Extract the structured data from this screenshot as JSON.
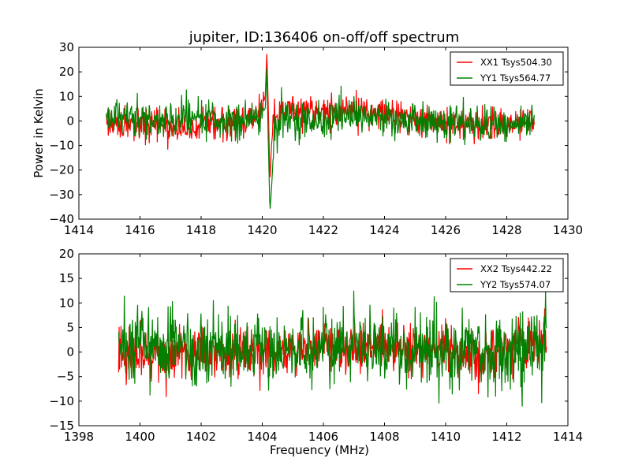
{
  "figure_title": "jupiter, ID:136406 on-off/off spectrum",
  "colors": {
    "xx": "#ff0000",
    "yy": "#008000"
  },
  "chart_data": [
    {
      "type": "line",
      "xlabel": "",
      "ylabel": "Power in Kelvin",
      "xlim": [
        1414,
        1430
      ],
      "ylim": [
        -40,
        30
      ],
      "xticks": [
        1414,
        1416,
        1418,
        1420,
        1422,
        1424,
        1426,
        1428,
        1430
      ],
      "yticks": [
        -40,
        -30,
        -20,
        -10,
        0,
        10,
        20,
        30
      ],
      "grid": false,
      "legend_position": "top-right",
      "x_range": [
        1414.9,
        1428.9
      ],
      "series": [
        {
          "name": "XX1 Tsys504.30",
          "color": "#ff0000",
          "x": [
            1414.9,
            1415.5,
            1416.0,
            1416.5,
            1417.0,
            1417.5,
            1418.0,
            1418.5,
            1419.0,
            1419.5,
            1419.9,
            1420.1,
            1420.15,
            1420.2,
            1420.25,
            1420.3,
            1420.4,
            1420.6,
            1421.0,
            1421.5,
            1422.0,
            1422.5,
            1423.0,
            1423.5,
            1424.0,
            1424.5,
            1425.0,
            1425.5,
            1426.0,
            1426.5,
            1427.0,
            1427.5,
            1428.0,
            1428.5,
            1428.9
          ],
          "values": [
            0,
            -2,
            -3,
            -2,
            -3,
            -3,
            -2,
            -1,
            0,
            0,
            2,
            10,
            28,
            5,
            -25,
            -10,
            3,
            4,
            4,
            4,
            4,
            5,
            4,
            3,
            3,
            2,
            1,
            0,
            -1,
            -2,
            -1,
            -2,
            -1,
            0,
            1
          ]
        },
        {
          "name": "YY1 Tsys564.77",
          "color": "#008000",
          "x": [
            1414.9,
            1415.5,
            1416.0,
            1416.5,
            1417.0,
            1417.5,
            1418.0,
            1418.5,
            1419.0,
            1419.5,
            1419.9,
            1420.1,
            1420.15,
            1420.2,
            1420.25,
            1420.3,
            1420.4,
            1420.6,
            1421.0,
            1421.5,
            1422.0,
            1422.5,
            1423.0,
            1423.5,
            1424.0,
            1424.5,
            1425.0,
            1425.5,
            1426.0,
            1426.5,
            1427.0,
            1427.5,
            1428.0,
            1428.5,
            1428.9
          ],
          "values": [
            1,
            2,
            1,
            1,
            1,
            2,
            1,
            0,
            0,
            0,
            2,
            5,
            22,
            -10,
            -37,
            -28,
            -5,
            2,
            1,
            0,
            0,
            1,
            1,
            2,
            1,
            1,
            1,
            0,
            0,
            -1,
            -1,
            -2,
            -2,
            -1,
            0
          ]
        }
      ]
    },
    {
      "type": "line",
      "xlabel": "Frequency (MHz)",
      "ylabel": "",
      "xlim": [
        1398,
        1414
      ],
      "ylim": [
        -15,
        20
      ],
      "xticks": [
        1398,
        1400,
        1402,
        1404,
        1406,
        1408,
        1410,
        1412,
        1414
      ],
      "yticks": [
        -15,
        -10,
        -5,
        0,
        5,
        10,
        15,
        20
      ],
      "grid": false,
      "legend_position": "top-right",
      "x_range": [
        1399.3,
        1413.3
      ],
      "series": [
        {
          "name": "XX2 Tsys442.22",
          "color": "#ff0000",
          "x": [
            1399.3,
            1400.0,
            1401.0,
            1402.0,
            1403.0,
            1404.0,
            1405.0,
            1406.0,
            1407.0,
            1408.0,
            1409.0,
            1410.0,
            1411.0,
            1412.0,
            1413.3
          ],
          "values": [
            0,
            -1,
            -1,
            -1,
            0,
            0,
            0,
            1,
            1,
            1,
            1,
            0,
            -1,
            1,
            2
          ]
        },
        {
          "name": "YY2 Tsys574.07",
          "color": "#008000",
          "x": [
            1399.3,
            1400.0,
            1401.0,
            1402.0,
            1403.0,
            1404.0,
            1405.0,
            1406.0,
            1407.0,
            1408.0,
            1409.0,
            1410.0,
            1411.0,
            1412.0,
            1413.3
          ],
          "values": [
            1,
            2,
            1,
            0,
            1,
            1,
            0,
            1,
            2,
            1,
            1,
            0,
            0,
            1,
            2
          ]
        }
      ]
    }
  ]
}
